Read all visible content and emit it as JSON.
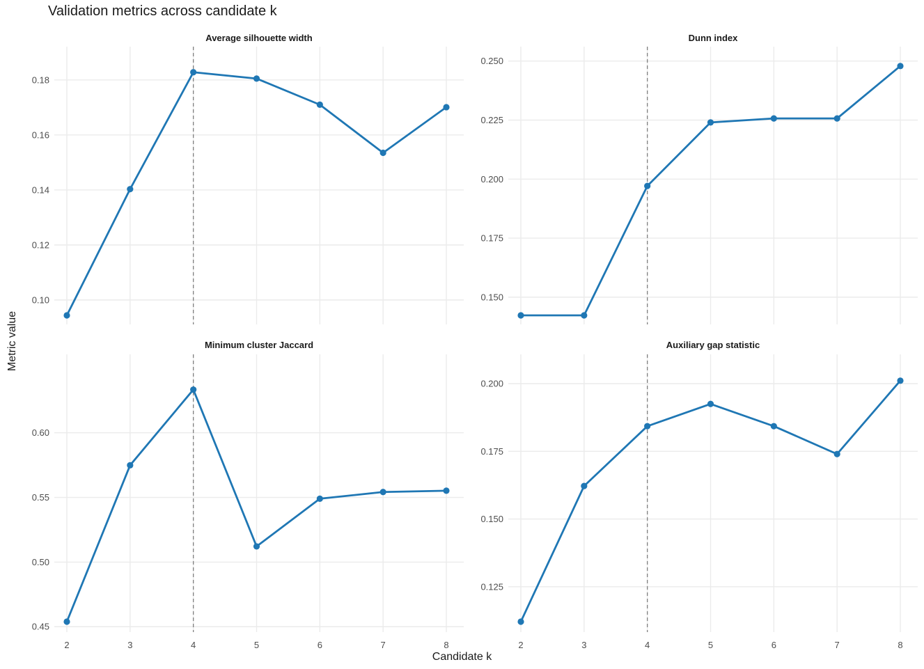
{
  "chart_data": {
    "type": "line",
    "title": "Validation metrics across candidate k",
    "xlabel": "Candidate k",
    "ylabel": "Metric value",
    "x": [
      2,
      3,
      4,
      5,
      6,
      7,
      8
    ],
    "highlight_x": 4,
    "colors": {
      "line": "#1f77b4",
      "reference_line": "#808080",
      "grid": "#ebebeb"
    },
    "grid": true,
    "panels": [
      {
        "title": "Average silhouette width",
        "values": [
          0.0944,
          0.1403,
          0.1828,
          0.1805,
          0.171,
          0.1535,
          0.1701
        ],
        "yticks": [
          "0.10",
          "0.12",
          "0.14",
          "0.16",
          "0.18"
        ],
        "yrange": [
          0.0944,
          0.1873
        ]
      },
      {
        "title": "Dunn index",
        "values": [
          0.1423,
          0.1423,
          0.1971,
          0.224,
          0.2257,
          0.2257,
          0.2479
        ],
        "yticks": [
          "0.150",
          "0.175",
          "0.200",
          "0.225",
          "0.250"
        ],
        "yrange": [
          0.1423,
          0.2508
        ]
      },
      {
        "title": "Minimum cluster Jaccard",
        "values": [
          0.4539,
          0.5749,
          0.6334,
          0.5121,
          0.549,
          0.5542,
          0.5552
        ],
        "yticks": [
          "0.45",
          "0.50",
          "0.55",
          "0.60"
        ],
        "yrange": [
          0.4539,
          0.651
        ]
      },
      {
        "title": "Auxiliary gap statistic",
        "values": [
          0.1121,
          0.1622,
          0.1843,
          0.1925,
          0.1843,
          0.174,
          0.2011
        ],
        "yticks": [
          "0.125",
          "0.150",
          "0.175",
          "0.200"
        ],
        "yrange": [
          0.1121,
          0.2062
        ]
      }
    ]
  }
}
